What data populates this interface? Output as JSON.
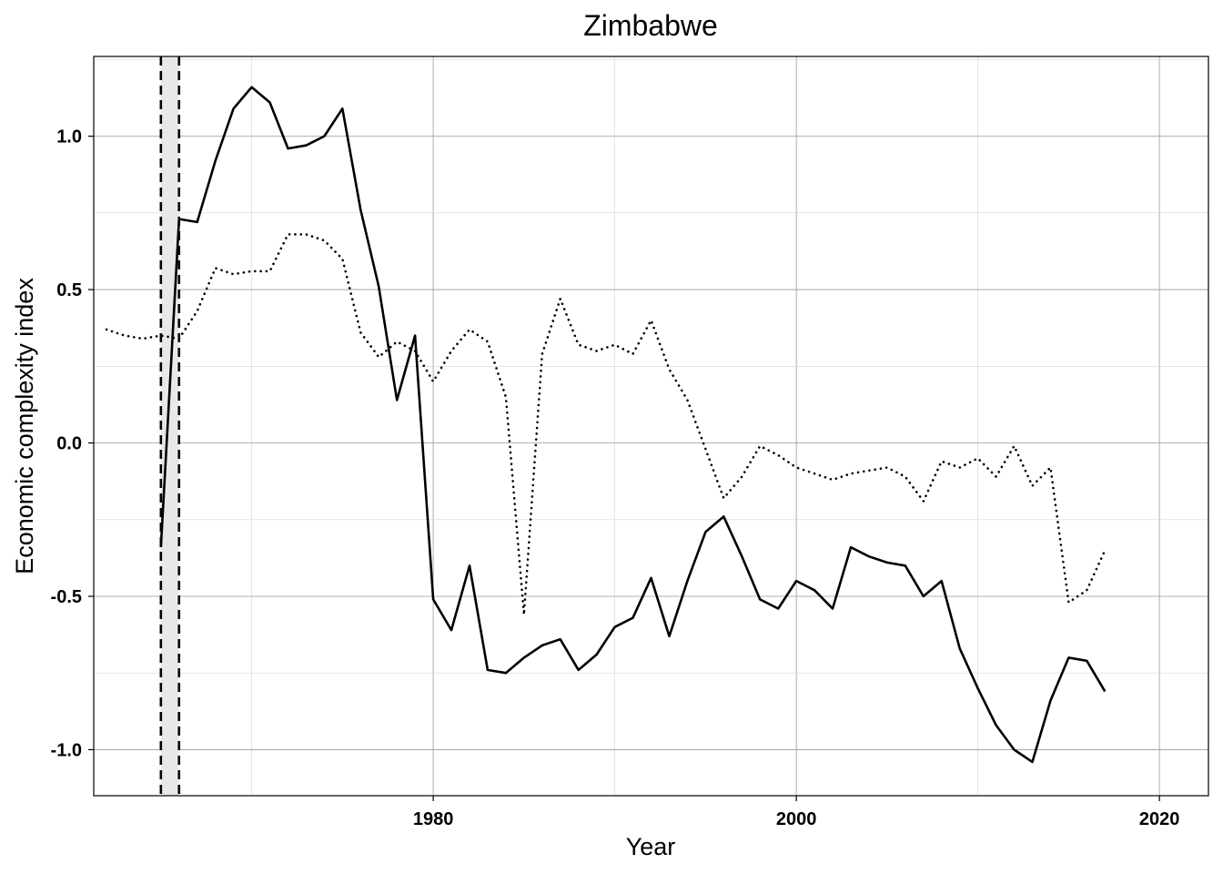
{
  "chart_data": {
    "type": "line",
    "title": "Zimbabwe",
    "xlabel": "Year",
    "ylabel": "Economic complexity index",
    "xlim": [
      1961.3,
      2022.7
    ],
    "ylim": [
      -1.15,
      1.26
    ],
    "x_ticks": [
      1980,
      2000,
      2020
    ],
    "y_ticks": [
      -1.0,
      -0.5,
      0.0,
      0.5,
      1.0
    ],
    "y_tick_labels": [
      "-1.0",
      "-0.5",
      "0.0",
      "0.5",
      "1.0"
    ],
    "grid": true,
    "shaded_band": {
      "x_start": 1965,
      "x_end": 1966,
      "fill": "#e8e8e8",
      "line_style": "dashed"
    },
    "series": [
      {
        "style": "solid",
        "color": "#000000",
        "x": [
          1965,
          1966,
          1967,
          1968,
          1969,
          1970,
          1971,
          1972,
          1973,
          1974,
          1975,
          1976,
          1977,
          1978,
          1979,
          1980,
          1981,
          1982,
          1983,
          1984,
          1985,
          1986,
          1987,
          1988,
          1989,
          1990,
          1991,
          1992,
          1993,
          1994,
          1995,
          1996,
          1997,
          1998,
          1999,
          2000,
          2001,
          2002,
          2003,
          2004,
          2005,
          2006,
          2007,
          2008,
          2009,
          2010,
          2011,
          2012,
          2013,
          2014,
          2015,
          2016,
          2017
        ],
        "values": [
          -0.34,
          0.73,
          0.72,
          0.92,
          1.09,
          1.16,
          1.11,
          0.96,
          0.97,
          1.0,
          1.09,
          0.76,
          0.51,
          0.14,
          0.35,
          -0.51,
          -0.61,
          -0.4,
          -0.74,
          -0.75,
          -0.7,
          -0.66,
          -0.64,
          -0.74,
          -0.69,
          -0.6,
          -0.57,
          -0.44,
          -0.63,
          -0.45,
          -0.29,
          -0.24,
          -0.37,
          -0.51,
          -0.54,
          -0.45,
          -0.48,
          -0.54,
          -0.34,
          -0.37,
          -0.39,
          -0.4,
          -0.5,
          -0.45,
          -0.67,
          -0.8,
          -0.92,
          -1.0,
          -1.04,
          -0.84,
          -0.7,
          -0.71,
          -0.81
        ]
      },
      {
        "style": "dotted",
        "color": "#000000",
        "x": [
          1962,
          1963,
          1964,
          1965,
          1966,
          1967,
          1968,
          1969,
          1970,
          1971,
          1972,
          1973,
          1974,
          1975,
          1976,
          1977,
          1978,
          1979,
          1980,
          1981,
          1982,
          1983,
          1984,
          1985,
          1986,
          1987,
          1988,
          1989,
          1990,
          1991,
          1992,
          1993,
          1994,
          1995,
          1996,
          1997,
          1998,
          1999,
          2000,
          2001,
          2002,
          2003,
          2004,
          2005,
          2006,
          2007,
          2008,
          2009,
          2010,
          2011,
          2012,
          2013,
          2014,
          2015,
          2016,
          2017
        ],
        "values": [
          0.37,
          0.35,
          0.34,
          0.35,
          0.34,
          0.43,
          0.57,
          0.55,
          0.56,
          0.56,
          0.68,
          0.68,
          0.66,
          0.6,
          0.36,
          0.28,
          0.33,
          0.3,
          0.2,
          0.3,
          0.37,
          0.33,
          0.15,
          -0.56,
          0.29,
          0.47,
          0.32,
          0.3,
          0.32,
          0.29,
          0.4,
          0.24,
          0.14,
          -0.02,
          -0.18,
          -0.11,
          -0.01,
          -0.04,
          -0.08,
          -0.1,
          -0.12,
          -0.1,
          -0.09,
          -0.08,
          -0.11,
          -0.19,
          -0.06,
          -0.08,
          -0.05,
          -0.11,
          -0.01,
          -0.14,
          -0.08,
          -0.52,
          -0.48,
          -0.35
        ]
      }
    ]
  }
}
